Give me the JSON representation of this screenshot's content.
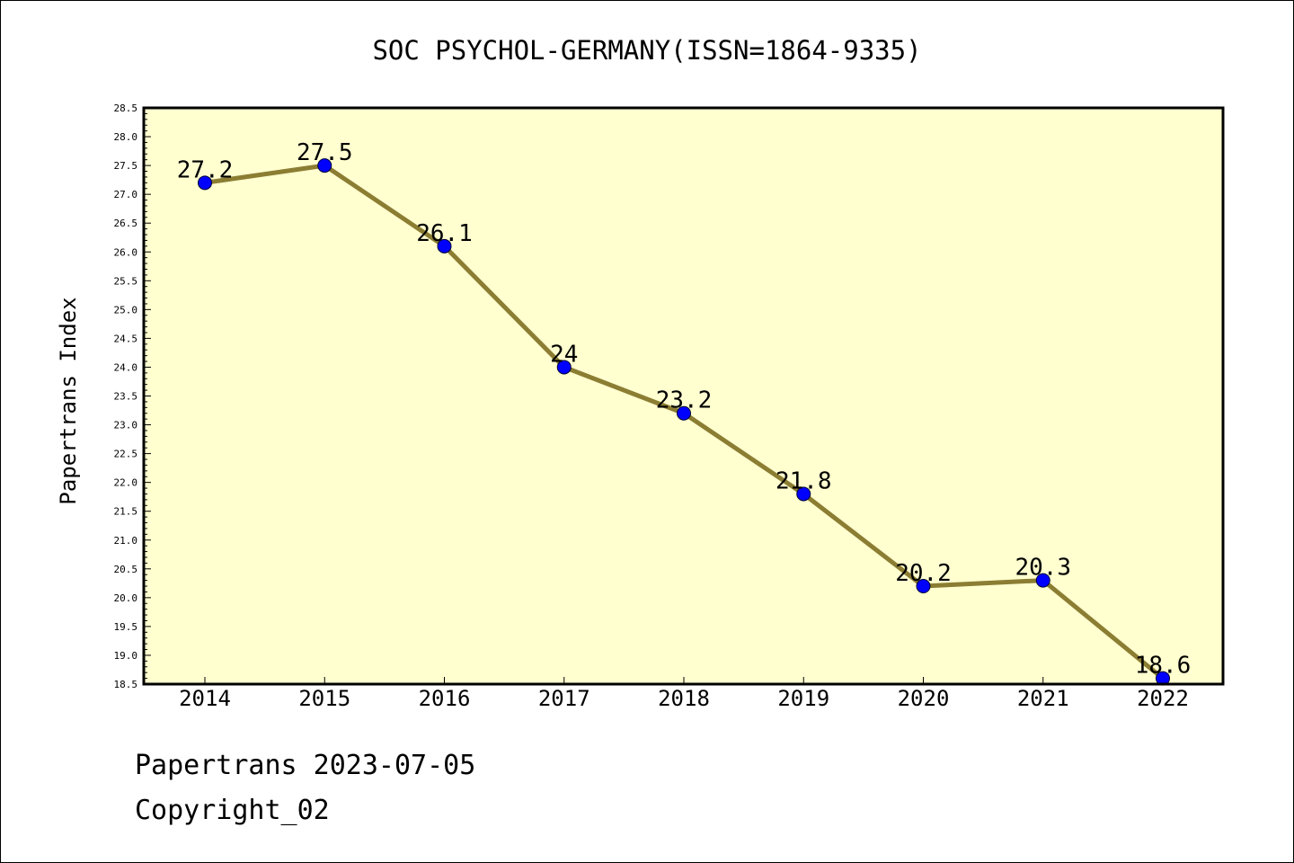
{
  "chart_data": {
    "type": "line",
    "title": "SOC PSYCHOL-GERMANY(ISSN=1864-9335)",
    "ylabel": "Papertrans Index",
    "xlabel": "",
    "x": [
      "2014",
      "2015",
      "2016",
      "2017",
      "2018",
      "2019",
      "2020",
      "2021",
      "2022"
    ],
    "series": [
      {
        "values": [
          27.2,
          27.5,
          26.1,
          24.0,
          23.2,
          21.8,
          20.2,
          20.3,
          18.6
        ],
        "labels": [
          "27.2",
          "27.5",
          "26.1",
          "24",
          "23.2",
          "21.8",
          "20.2",
          "20.3",
          "18.6"
        ],
        "line_color": "#8b7d32",
        "marker_color": "#0000ff"
      }
    ],
    "ylim": [
      18.5,
      28.5
    ],
    "yticks": [
      "18.5",
      "19.0",
      "19.5",
      "20.0",
      "20.5",
      "21.0",
      "21.5",
      "22.0",
      "22.5",
      "23.0",
      "23.5",
      "24.0",
      "24.5",
      "25.0",
      "25.5",
      "26.0",
      "26.5",
      "27.0",
      "27.5",
      "28.0",
      "28.5"
    ],
    "plot_background": "#ffffd0",
    "grid": false,
    "legend": "none"
  },
  "footer": {
    "line1": "Papertrans 2023-07-05",
    "line2": "Copyright_02"
  }
}
